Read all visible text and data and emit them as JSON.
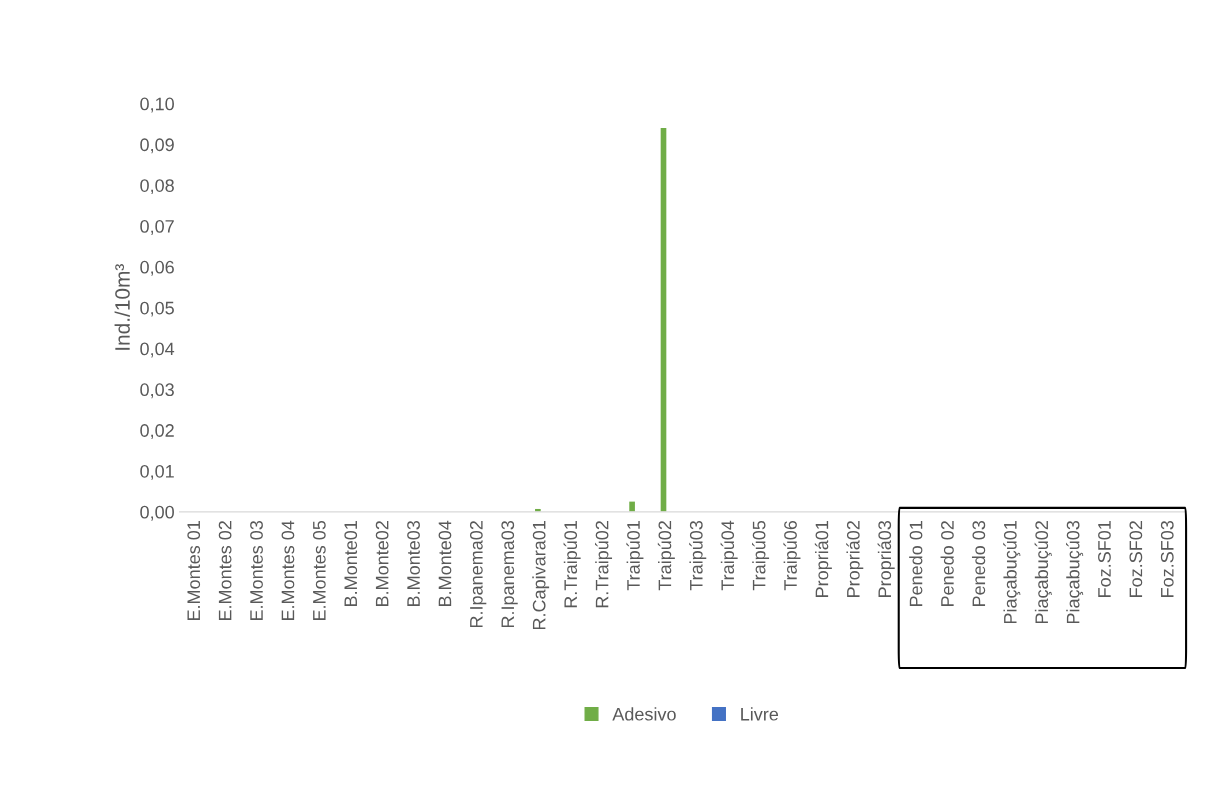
{
  "chart_data": {
    "type": "bar",
    "ylabel": "Ind./10m³",
    "categories": [
      "E.Montes 01",
      "E.Montes 02",
      "E.Montes 03",
      "E.Montes 04",
      "E.Montes 05",
      "B.Monte01",
      "B.Monte02",
      "B.Monte03",
      "B.Monte04",
      "R.Ipanema02",
      "R.Ipanema03",
      "R.Capivara01",
      "R.Traipú01",
      "R.Traipú02",
      "Traipú01",
      "Traipú02",
      "Traipú03",
      "Traipú04",
      "Traipú05",
      "Traipú06",
      "Propriá01",
      "Propriá02",
      "Propriá03",
      "Penedo 01",
      "Penedo 02",
      "Penedo 03",
      "Piaçabuçú01",
      "Piaçabuçú02",
      "Piaçabuçú03",
      "Foz.SF01",
      "Foz.SF02",
      "Foz.SF03"
    ],
    "series": [
      {
        "name": "Adesivo",
        "color": "#70ad47",
        "values": [
          0,
          0,
          0,
          0,
          0,
          0,
          0,
          0,
          0,
          0,
          0,
          0.0007,
          0,
          0,
          0.0025,
          0.094,
          0,
          0,
          0,
          0,
          0,
          0,
          0,
          0,
          0,
          0,
          0,
          0,
          0,
          0,
          0,
          0
        ]
      },
      {
        "name": "Livre",
        "color": "#4472c4",
        "values": [
          0,
          0,
          0,
          0,
          0,
          0,
          0,
          0,
          0,
          0,
          0,
          0,
          0,
          0,
          0,
          0,
          0,
          0,
          0,
          0,
          0,
          0,
          0,
          0,
          0,
          0,
          0,
          0,
          0,
          0,
          0,
          0
        ]
      }
    ],
    "ylim": [
      0,
      0.1
    ],
    "yticks": [
      {
        "value": 0,
        "label": "0,00"
      },
      {
        "value": 0.01,
        "label": "0,01"
      },
      {
        "value": 0.02,
        "label": "0,02"
      },
      {
        "value": 0.03,
        "label": "0,03"
      },
      {
        "value": 0.04,
        "label": "0,04"
      },
      {
        "value": 0.05,
        "label": "0,05"
      },
      {
        "value": 0.06,
        "label": "0,06"
      },
      {
        "value": 0.07,
        "label": "0,07"
      },
      {
        "value": 0.08,
        "label": "0,08"
      },
      {
        "value": 0.09,
        "label": "0,09"
      },
      {
        "value": 0.1,
        "label": "0,10"
      }
    ],
    "grid": false,
    "legend": "bottom"
  }
}
